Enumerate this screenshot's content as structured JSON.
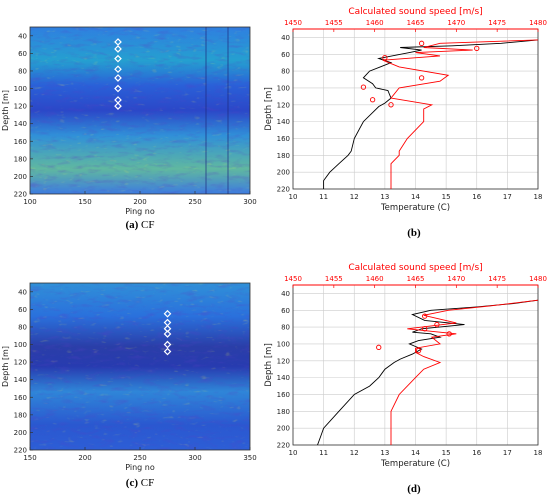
{
  "panels": [
    {
      "caption_label": "(a)",
      "caption_text": "CF",
      "kind": "echogram",
      "xlabel": "Ping no",
      "ylabel": "Depth [m]",
      "x_ticks": [
        "100",
        "150",
        "200",
        "250",
        "300"
      ],
      "y_ticks": [
        "40",
        "60",
        "80",
        "100",
        "120",
        "140",
        "160",
        "180",
        "200",
        "220"
      ],
      "xlim": [
        100,
        300
      ],
      "ylim": [
        220,
        30
      ],
      "markers": [
        {
          "ping": 180,
          "depth": 47
        },
        {
          "ping": 180,
          "depth": 55
        },
        {
          "ping": 180,
          "depth": 66
        },
        {
          "ping": 180,
          "depth": 78
        },
        {
          "ping": 180,
          "depth": 88
        },
        {
          "ping": 180,
          "depth": 100
        },
        {
          "ping": 180,
          "depth": 113
        },
        {
          "ping": 180,
          "depth": 120
        }
      ]
    },
    {
      "caption_label": "(b)",
      "caption_text": "",
      "kind": "profile",
      "top_title": "Calculated sound speed [m/s]",
      "top_ticks": [
        "1450",
        "1455",
        "1460",
        "1465",
        "1470",
        "1475",
        "1480"
      ],
      "xlabel": "Temperature (C)",
      "ylabel": "Depth [m]",
      "x_ticks": [
        "10",
        "11",
        "12",
        "13",
        "14",
        "15",
        "16",
        "17",
        "18"
      ],
      "y_ticks": [
        "40",
        "60",
        "80",
        "100",
        "120",
        "140",
        "160",
        "180",
        "200",
        "220"
      ]
    },
    {
      "caption_label": "(c)",
      "caption_text": "CF",
      "kind": "echogram",
      "xlabel": "Ping no",
      "ylabel": "Depth [m]",
      "x_ticks": [
        "150",
        "200",
        "250",
        "300",
        "350"
      ],
      "y_ticks": [
        "40",
        "60",
        "80",
        "100",
        "120",
        "140",
        "160",
        "180",
        "200",
        "220"
      ],
      "xlim": [
        150,
        350
      ],
      "ylim": [
        220,
        30
      ],
      "markers": [
        {
          "ping": 275,
          "depth": 65
        },
        {
          "ping": 275,
          "depth": 75
        },
        {
          "ping": 275,
          "depth": 82
        },
        {
          "ping": 275,
          "depth": 88
        },
        {
          "ping": 275,
          "depth": 100
        },
        {
          "ping": 275,
          "depth": 108
        }
      ]
    },
    {
      "caption_label": "(d)",
      "caption_text": "",
      "kind": "profile",
      "top_title": "Calculated sound speed [m/s]",
      "top_ticks": [
        "1450",
        "1455",
        "1460",
        "1465",
        "1470",
        "1475",
        "1480"
      ],
      "xlabel": "Temperature (C)",
      "ylabel": "Depth [m]",
      "x_ticks": [
        "10",
        "11",
        "12",
        "13",
        "14",
        "15",
        "16",
        "17",
        "18"
      ],
      "y_ticks": [
        "40",
        "60",
        "80",
        "100",
        "120",
        "140",
        "160",
        "180",
        "200",
        "220"
      ]
    }
  ],
  "colors": {
    "temperature": "#000000",
    "sound_speed": "#ff0000",
    "grid": "#cccccc",
    "marker": "#ffffff"
  },
  "chart_data": [
    {
      "type": "heatmap",
      "xlabel": "Ping no",
      "ylabel": "Depth [m]",
      "xlim": [
        100,
        300
      ],
      "ylim": [
        220,
        30
      ],
      "colormap": "parula"
    },
    {
      "type": "line",
      "xlabel": "Temperature (C)",
      "ylabel": "Depth [m]",
      "x2label": "Calculated sound speed [m/s]",
      "xlim": [
        10,
        18
      ],
      "x2lim": [
        1450,
        1480
      ],
      "ylim": [
        220,
        30
      ],
      "grid": true,
      "series": [
        {
          "axis": "bottom",
          "x": [
            18,
            16.8,
            15.2,
            13.5,
            14.2,
            13.8,
            12.8,
            13.2,
            12.5,
            12.3,
            12.6,
            12.7,
            13.1,
            13.2,
            13.0,
            12.8,
            12.3,
            12.0,
            11.9,
            11.8,
            11.5,
            11.2,
            11.0,
            11.0
          ],
          "y": [
            43,
            47,
            50,
            52,
            55,
            58,
            65,
            70,
            80,
            88,
            95,
            100,
            103,
            112,
            118,
            122,
            140,
            160,
            175,
            180,
            190,
            200,
            210,
            220
          ]
        },
        {
          "axis": "top",
          "x": [
            1480,
            1468,
            1466,
            1472,
            1465,
            1468,
            1461,
            1463,
            1469,
            1468,
            1463,
            1462,
            1467,
            1466,
            1466,
            1464,
            1463,
            1463,
            1462,
            1462,
            1462,
            1462
          ],
          "y": [
            43,
            47,
            52,
            55,
            58,
            62,
            67,
            75,
            85,
            92,
            100,
            112,
            120,
            125,
            140,
            160,
            175,
            180,
            190,
            200,
            210,
            220
          ]
        }
      ],
      "markers_bottom": [
        {
          "x": 14.2,
          "y": 47
        },
        {
          "x": 16.0,
          "y": 53
        },
        {
          "x": 13.0,
          "y": 64
        },
        {
          "x": 14.2,
          "y": 88
        },
        {
          "x": 12.3,
          "y": 99
        },
        {
          "x": 12.6,
          "y": 114
        },
        {
          "x": 13.2,
          "y": 120
        }
      ]
    },
    {
      "type": "heatmap",
      "xlabel": "Ping no",
      "ylabel": "Depth [m]",
      "xlim": [
        150,
        350
      ],
      "ylim": [
        220,
        30
      ],
      "colormap": "parula"
    },
    {
      "type": "line",
      "xlabel": "Temperature (C)",
      "ylabel": "Depth [m]",
      "x2label": "Calculated sound speed [m/s]",
      "xlim": [
        10,
        18
      ],
      "x2lim": [
        1450,
        1480
      ],
      "ylim": [
        220,
        30
      ],
      "grid": true,
      "series": [
        {
          "axis": "bottom",
          "x": [
            18,
            17.2,
            16.0,
            14.5,
            13.9,
            14.3,
            15.6,
            14.2,
            13.9,
            14.5,
            14.8,
            14.1,
            13.8,
            14.0,
            14.2,
            13.9,
            13.5,
            13.3,
            13.0,
            12.8,
            12.5,
            12.0,
            11.5,
            11.0,
            10.9,
            10.8
          ],
          "y": [
            48,
            52,
            56,
            60,
            65,
            72,
            77,
            82,
            86,
            88,
            92,
            96,
            100,
            103,
            106,
            112,
            118,
            122,
            130,
            140,
            150,
            160,
            180,
            200,
            210,
            220
          ]
        },
        {
          "axis": "top",
          "x": [
            1480,
            1474,
            1469,
            1466,
            1470,
            1464,
            1468,
            1470,
            1467,
            1468,
            1465,
            1465,
            1466,
            1468,
            1466,
            1465,
            1463,
            1462,
            1462,
            1462,
            1462
          ],
          "y": [
            48,
            55,
            60,
            66,
            75,
            82,
            86,
            88,
            92,
            100,
            105,
            110,
            115,
            122,
            130,
            140,
            160,
            180,
            200,
            210,
            220
          ]
        }
      ],
      "markers_bottom": [
        {
          "x": 14.3,
          "y": 67
        },
        {
          "x": 14.7,
          "y": 77
        },
        {
          "x": 14.3,
          "y": 82
        },
        {
          "x": 15.1,
          "y": 88
        },
        {
          "x": 12.8,
          "y": 104
        },
        {
          "x": 14.1,
          "y": 108
        }
      ]
    }
  ]
}
